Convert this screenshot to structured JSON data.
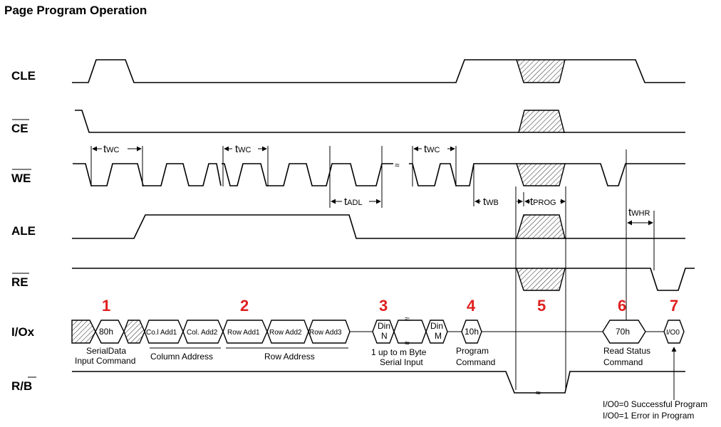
{
  "title": "Page Program Operation",
  "signals": {
    "cle": "CLE",
    "ce": "CE",
    "we": "WE",
    "ale": "ALE",
    "re": "RE",
    "io": "I/Ox",
    "rb_r": "R/",
    "rb_b": "B"
  },
  "timing": {
    "twc_t": "t",
    "twc_s": "WC",
    "tadl_t": "t",
    "tadl_s": "ADL",
    "twb_t": "t",
    "twb_s": "WB",
    "tprog_t": "t",
    "tprog_s": "PROG",
    "twhr_t": "t",
    "twhr_s": "WHR"
  },
  "bus": {
    "cmd80": "80h",
    "col1": "Co.l Add1",
    "col2": "Col. Add2",
    "row1": "Row Add1",
    "row2": "Row Add2",
    "row3": "Row Add3",
    "din": "Din",
    "din_n": "N",
    "din_m": "M",
    "cmd10": "10h",
    "cmd70": "70h",
    "io0": "I/O",
    "io0_sub": "0"
  },
  "labels": {
    "serial_l1": "SerialData",
    "serial_l2": "Input Command",
    "col_addr": "Column Address",
    "row_addr": "Row Address",
    "serial_in_l1": "1 up to m Byte",
    "serial_in_l2": "Serial Input",
    "prog_l1": "Program",
    "prog_l2": "Command",
    "status_l1": "Read Status",
    "status_l2": "Command",
    "result_l1": "I/O0=0 Successful Program",
    "result_l2": "I/O0=1 Error in Program"
  },
  "steps": [
    "1",
    "2",
    "3",
    "4",
    "5",
    "6",
    "7"
  ]
}
